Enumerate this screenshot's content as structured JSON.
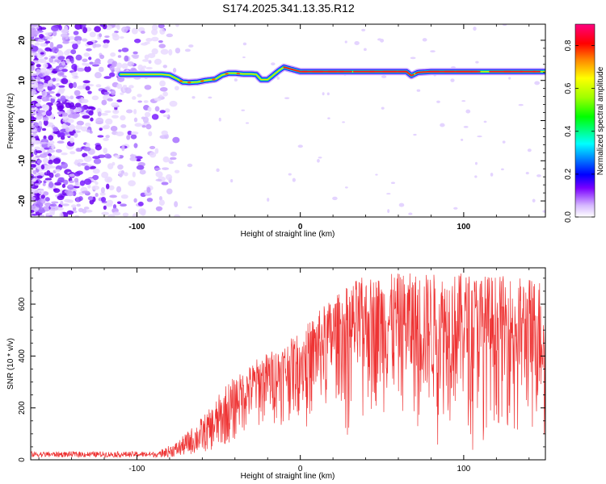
{
  "title": "S174.2025.341.13.35.R12",
  "chart_data": [
    {
      "type": "heatmap",
      "name": "spectrogram",
      "title": "S174.2025.341.13.35.R12",
      "xlabel": "Height of straight line (km)",
      "ylabel": "Frequency (Hz)",
      "xlim": [
        -165,
        150
      ],
      "ylim": [
        -24,
        24
      ],
      "xticks": [
        -100,
        0,
        100
      ],
      "xtick_labels": [
        "-100",
        "0",
        "100"
      ],
      "yticks": [
        -20,
        -10,
        0,
        10,
        20
      ],
      "ytick_labels": [
        "-20",
        "-10",
        "0",
        "10",
        "20"
      ],
      "ridge": {
        "description": "dominant frequency ridge",
        "x": [
          -110,
          -95,
          -85,
          -80,
          -75,
          -72,
          -68,
          -63,
          -58,
          -52,
          -48,
          -44,
          -40,
          -35,
          -30,
          -27,
          -24,
          -20,
          -16,
          -13,
          -10,
          0,
          20,
          50,
          65,
          68,
          72,
          80,
          100,
          120,
          150
        ],
        "freq": [
          11.5,
          11.5,
          11.5,
          11.3,
          10.3,
          9.6,
          9.5,
          9.6,
          10.0,
          10.3,
          11.3,
          11.8,
          11.8,
          11.6,
          11.6,
          11.5,
          10.2,
          10.2,
          11.5,
          12.5,
          13.3,
          12.2,
          12.2,
          12.2,
          12.2,
          11.2,
          12.0,
          12.2,
          12.2,
          12.2,
          12.2
        ]
      },
      "colorbar": {
        "label": "Normalized spectral amplitude",
        "range": [
          0.0,
          0.9
        ],
        "ticks": [
          0.0,
          0.2,
          0.4,
          0.6,
          0.8
        ],
        "tick_labels": [
          "0.0",
          "0.2",
          "0.4",
          "0.6",
          "0.8"
        ]
      }
    },
    {
      "type": "line",
      "name": "snr",
      "xlabel": "Height of straight line (km)",
      "ylabel": "SNR (10 * v/v)",
      "xlim": [
        -165,
        150
      ],
      "ylim": [
        0,
        740
      ],
      "xticks": [
        -100,
        0,
        100
      ],
      "xtick_labels": [
        "-100",
        "0",
        "100"
      ],
      "yticks": [
        0,
        200,
        400,
        600
      ],
      "ytick_labels": [
        "0",
        "200",
        "400",
        "600"
      ],
      "series": [
        {
          "name": "SNR",
          "color": "#ee3333",
          "envelope_x": [
            -165,
            -120,
            -95,
            -85,
            -75,
            -65,
            -55,
            -45,
            -35,
            -25,
            -15,
            -5,
            5,
            15,
            25,
            35,
            60,
            100,
            150
          ],
          "envelope_max": [
            32,
            34,
            32,
            40,
            72,
            135,
            200,
            300,
            340,
            400,
            430,
            470,
            530,
            600,
            650,
            700,
            720,
            720,
            700
          ],
          "envelope_min": [
            5,
            5,
            5,
            8,
            12,
            22,
            35,
            60,
            80,
            100,
            120,
            140,
            150,
            180,
            200,
            180,
            150,
            120,
            100
          ]
        }
      ]
    }
  ]
}
